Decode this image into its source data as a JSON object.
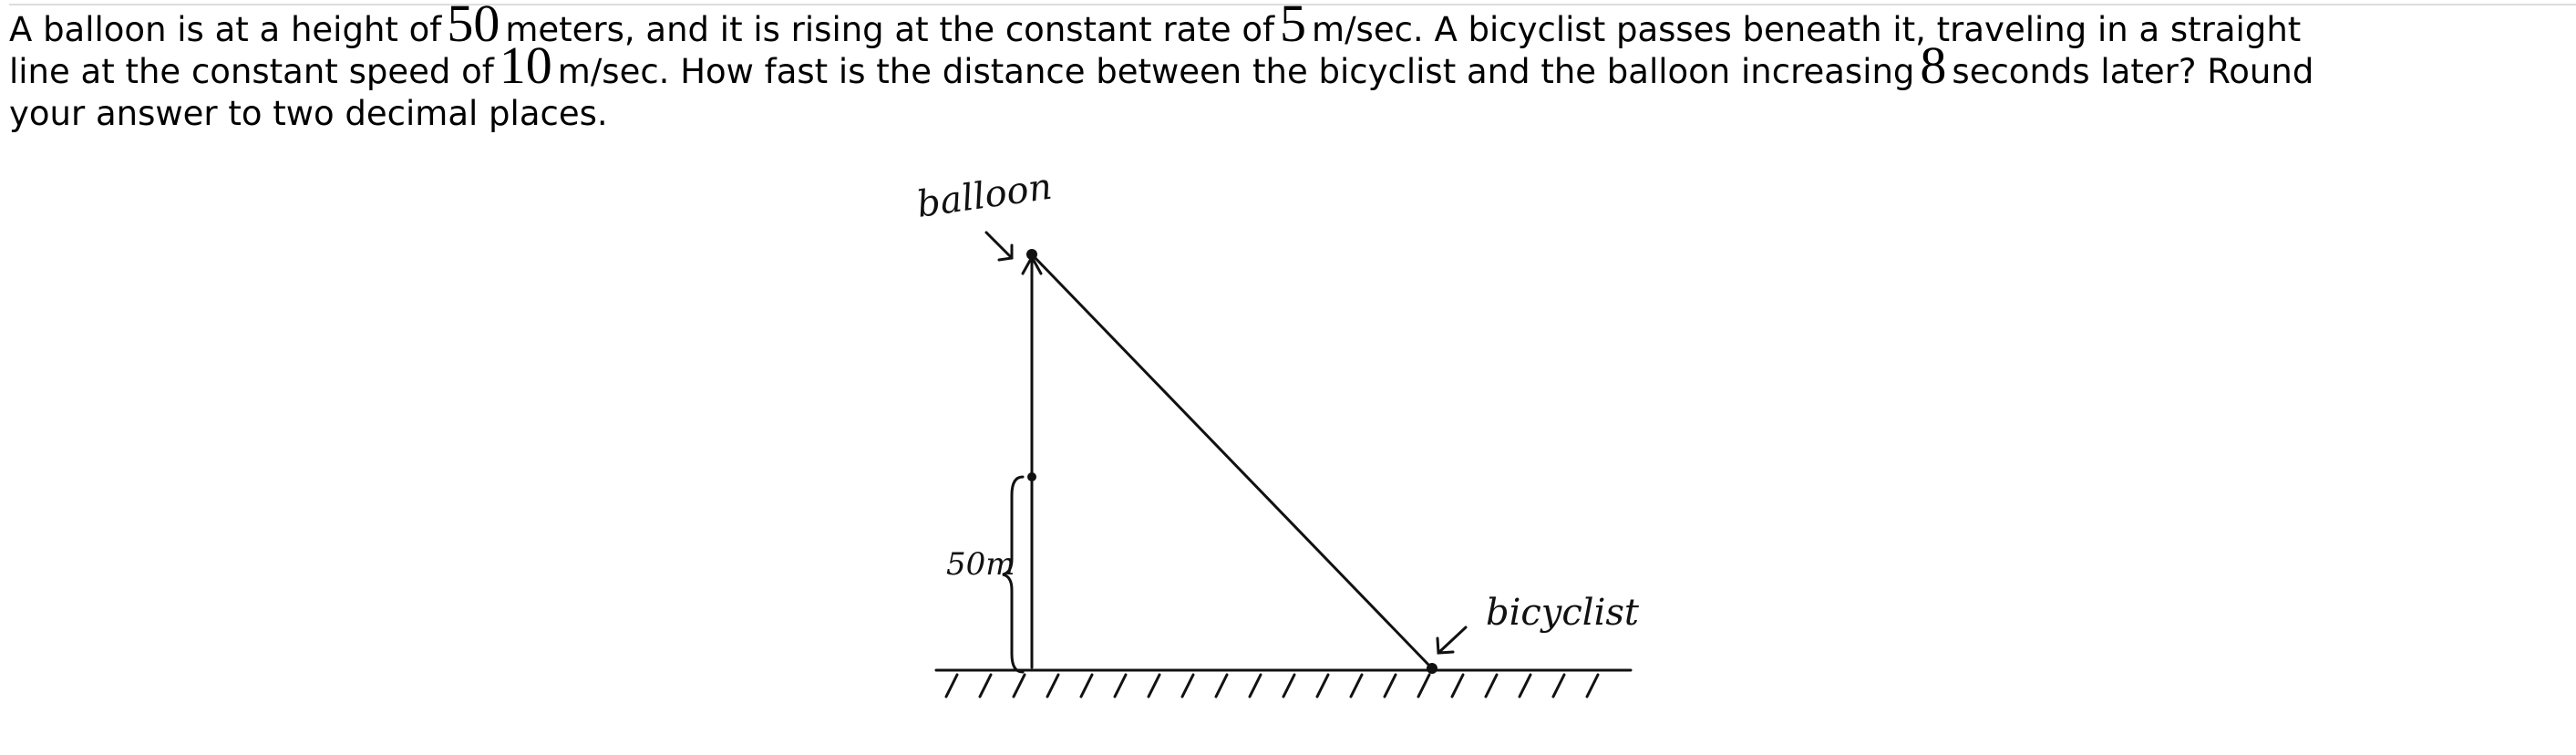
{
  "problem": {
    "text_1": "A balloon is at a height of",
    "height": 50,
    "text_2": "meters, and it is rising at the constant rate of",
    "rate": 5,
    "text_3": "m/sec. A bicyclist passes beneath it, traveling in a straight",
    "text_4": "line at the constant speed of",
    "speed": 10,
    "text_5": "m/sec. How fast is the distance between the bicyclist and the balloon increasing",
    "time": 8,
    "text_6": "seconds later? Round",
    "text_7": "your answer to two decimal places."
  },
  "diagram": {
    "balloon_label": "balloon",
    "height_label": "50m",
    "bicyclist_label": "bicyclist"
  }
}
